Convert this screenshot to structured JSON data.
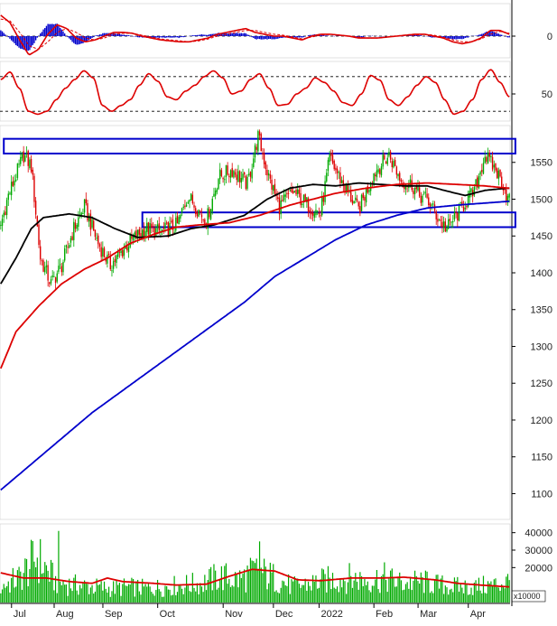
{
  "chart_data": [
    {
      "panel": "macd",
      "type": "line",
      "yticks": [
        0
      ],
      "series": [
        {
          "color": "#dd0000",
          "values": [
            22,
            14,
            -4,
            -20,
            -14,
            2,
            12,
            8,
            -2,
            -6,
            -4,
            0,
            4,
            4,
            3,
            0,
            -2,
            -4,
            -5,
            -6,
            -6,
            -4,
            -2,
            2,
            4,
            6,
            8,
            4,
            2,
            0,
            0,
            -2,
            -4,
            0,
            2,
            2,
            1,
            0,
            -2,
            -2,
            -2,
            -1,
            0,
            1,
            2,
            2,
            0,
            -2,
            -6,
            -8,
            -6,
            -2,
            6,
            6,
            2
          ]
        },
        {
          "color": "#dd0000",
          "style": "dashed",
          "values": [
            18,
            16,
            4,
            -10,
            -14,
            -6,
            4,
            8,
            4,
            -2,
            -4,
            -2,
            2,
            3,
            3,
            1,
            -1,
            -3,
            -4,
            -5,
            -6,
            -5,
            -3,
            0,
            2,
            4,
            6,
            6,
            4,
            2,
            1,
            -1,
            -3,
            -1,
            1,
            2,
            1,
            0,
            -1,
            -2,
            -2,
            -1,
            0,
            1,
            1,
            2,
            1,
            -1,
            -4,
            -6,
            -6,
            -3,
            2,
            5,
            3
          ]
        }
      ],
      "histogram_color": "#0000cc"
    },
    {
      "panel": "stochastic",
      "type": "line",
      "yticks": [
        50
      ],
      "series": [
        {
          "color": "#dd0000",
          "values": [
            75,
            88,
            60,
            20,
            15,
            20,
            40,
            60,
            75,
            90,
            78,
            30,
            20,
            30,
            40,
            65,
            85,
            72,
            45,
            40,
            55,
            65,
            80,
            90,
            78,
            50,
            55,
            75,
            85,
            60,
            30,
            32,
            50,
            60,
            78,
            70,
            55,
            35,
            30,
            50,
            82,
            74,
            40,
            30,
            45,
            65,
            80,
            70,
            40,
            15,
            20,
            40,
            75,
            92,
            70,
            45
          ]
        },
        {
          "color": "#dd0000",
          "style": "dashed",
          "values": [
            70,
            82,
            70,
            32,
            18,
            18,
            32,
            52,
            68,
            84,
            82,
            44,
            25,
            28,
            36,
            56,
            78,
            76,
            52,
            42,
            50,
            60,
            74,
            86,
            82,
            58,
            53,
            70,
            80,
            68,
            40,
            33,
            45,
            56,
            72,
            72,
            60,
            42,
            33,
            44,
            74,
            76,
            50,
            34,
            40,
            58,
            74,
            72,
            48,
            22,
            20,
            34,
            66,
            86,
            76,
            52
          ]
        }
      ]
    },
    {
      "panel": "price",
      "type": "candlestick",
      "ylim": [
        1065,
        1600
      ],
      "yticks": [
        1100,
        1150,
        1200,
        1250,
        1300,
        1350,
        1400,
        1450,
        1500,
        1550
      ],
      "xlabels": [
        "Jul",
        "Aug",
        "Sep",
        "Oct",
        "Nov",
        "Dec",
        "2022",
        "Feb",
        "Mar",
        "Apr"
      ],
      "xlabel_idx": [
        13,
        41,
        73,
        109,
        152,
        185,
        215,
        251,
        280,
        313
      ],
      "price_path": [
        [
          0,
          1465
        ],
        [
          5,
          1505
        ],
        [
          15,
          1560
        ],
        [
          20,
          1545
        ],
        [
          26,
          1420
        ],
        [
          33,
          1385
        ],
        [
          40,
          1410
        ],
        [
          48,
          1460
        ],
        [
          55,
          1490
        ],
        [
          64,
          1440
        ],
        [
          72,
          1410
        ],
        [
          84,
          1440
        ],
        [
          95,
          1460
        ],
        [
          105,
          1455
        ],
        [
          116,
          1465
        ],
        [
          123,
          1505
        ],
        [
          135,
          1470
        ],
        [
          143,
          1530
        ],
        [
          152,
          1540
        ],
        [
          162,
          1520
        ],
        [
          169,
          1585
        ],
        [
          176,
          1530
        ],
        [
          183,
          1490
        ],
        [
          192,
          1510
        ],
        [
          200,
          1495
        ],
        [
          210,
          1480
        ],
        [
          216,
          1555
        ],
        [
          225,
          1520
        ],
        [
          235,
          1485
        ],
        [
          245,
          1535
        ],
        [
          255,
          1560
        ],
        [
          263,
          1525
        ],
        [
          270,
          1520
        ],
        [
          275,
          1505
        ],
        [
          280,
          1500
        ],
        [
          287,
          1475
        ],
        [
          293,
          1460
        ],
        [
          300,
          1480
        ],
        [
          305,
          1495
        ],
        [
          311,
          1510
        ],
        [
          318,
          1560
        ],
        [
          325,
          1540
        ],
        [
          330,
          1520
        ],
        [
          333,
          1500
        ]
      ],
      "series": [
        {
          "color": "#000000",
          "path": [
            [
              0,
              1385
            ],
            [
              10,
              1420
            ],
            [
              20,
              1460
            ],
            [
              28,
              1475
            ],
            [
              45,
              1480
            ],
            [
              60,
              1475
            ],
            [
              75,
              1460
            ],
            [
              90,
              1448
            ],
            [
              110,
              1450
            ],
            [
              125,
              1460
            ],
            [
              140,
              1465
            ],
            [
              160,
              1478
            ],
            [
              175,
              1500
            ],
            [
              190,
              1515
            ],
            [
              205,
              1520
            ],
            [
              220,
              1518
            ],
            [
              235,
              1522
            ],
            [
              250,
              1520
            ],
            [
              265,
              1518
            ],
            [
              280,
              1518
            ],
            [
              295,
              1510
            ],
            [
              305,
              1505
            ],
            [
              318,
              1512
            ],
            [
              333,
              1515
            ]
          ]
        },
        {
          "color": "#dd0000",
          "path": [
            [
              0,
              1270
            ],
            [
              10,
              1320
            ],
            [
              25,
              1355
            ],
            [
              40,
              1385
            ],
            [
              55,
              1405
            ],
            [
              70,
              1420
            ],
            [
              85,
              1440
            ],
            [
              100,
              1452
            ],
            [
              115,
              1462
            ],
            [
              130,
              1465
            ],
            [
              150,
              1468
            ],
            [
              170,
              1478
            ],
            [
              190,
              1492
            ],
            [
              205,
              1500
            ],
            [
              220,
              1508
            ],
            [
              240,
              1515
            ],
            [
              260,
              1520
            ],
            [
              280,
              1522
            ],
            [
              300,
              1520
            ],
            [
              318,
              1518
            ],
            [
              333,
              1515
            ]
          ]
        },
        {
          "color": "#0000cc",
          "path": [
            [
              0,
              1105
            ],
            [
              20,
              1140
            ],
            [
              40,
              1175
            ],
            [
              60,
              1210
            ],
            [
              80,
              1240
            ],
            [
              100,
              1270
            ],
            [
              120,
              1300
            ],
            [
              140,
              1330
            ],
            [
              160,
              1360
            ],
            [
              180,
              1395
            ],
            [
              200,
              1420
            ],
            [
              220,
              1445
            ],
            [
              240,
              1465
            ],
            [
              260,
              1478
            ],
            [
              280,
              1488
            ],
            [
              300,
              1492
            ],
            [
              320,
              1495
            ],
            [
              333,
              1497
            ]
          ]
        }
      ],
      "annotations": [
        {
          "type": "rect",
          "from": 2,
          "to": 338,
          "top": 1582,
          "bottom": 1562,
          "color": "#0000cc"
        },
        {
          "type": "rect",
          "from": 93,
          "to": 338,
          "top": 1482,
          "bottom": 1462,
          "color": "#0000cc"
        }
      ]
    },
    {
      "panel": "volume",
      "type": "bar",
      "ylabel": "x10000",
      "ylim": [
        0,
        45000
      ],
      "yticks": [
        20000,
        30000,
        40000
      ],
      "bar_color": "#00aa00",
      "bar_profile": [
        [
          0,
          9000
        ],
        [
          12,
          14000
        ],
        [
          24,
          26000
        ],
        [
          36,
          12000
        ],
        [
          48,
          10000
        ],
        [
          60,
          9000
        ],
        [
          72,
          8000
        ],
        [
          84,
          9000
        ],
        [
          96,
          8000
        ],
        [
          108,
          9000
        ],
        [
          120,
          10000
        ],
        [
          132,
          11000
        ],
        [
          144,
          15000
        ],
        [
          156,
          13000
        ],
        [
          168,
          18000
        ],
        [
          180,
          14000
        ],
        [
          192,
          9000
        ],
        [
          204,
          11000
        ],
        [
          216,
          13000
        ],
        [
          228,
          14000
        ],
        [
          240,
          13000
        ],
        [
          252,
          14000
        ],
        [
          264,
          11000
        ],
        [
          276,
          12000
        ],
        [
          288,
          10000
        ],
        [
          300,
          9000
        ],
        [
          312,
          9000
        ],
        [
          324,
          10000
        ],
        [
          333,
          12000
        ]
      ],
      "series": [
        {
          "color": "#dd0000",
          "path": [
            [
              0,
              17000
            ],
            [
              15,
              14000
            ],
            [
              30,
              14000
            ],
            [
              45,
              12000
            ],
            [
              60,
              11000
            ],
            [
              70,
              14000
            ],
            [
              80,
              12000
            ],
            [
              100,
              11000
            ],
            [
              115,
              10000
            ],
            [
              135,
              10500
            ],
            [
              150,
              15000
            ],
            [
              165,
              19000
            ],
            [
              180,
              18000
            ],
            [
              195,
              13000
            ],
            [
              210,
              12500
            ],
            [
              230,
              14000
            ],
            [
              250,
              14000
            ],
            [
              265,
              14500
            ],
            [
              285,
              13000
            ],
            [
              300,
              11000
            ],
            [
              315,
              10000
            ],
            [
              333,
              9000
            ]
          ]
        }
      ]
    }
  ]
}
